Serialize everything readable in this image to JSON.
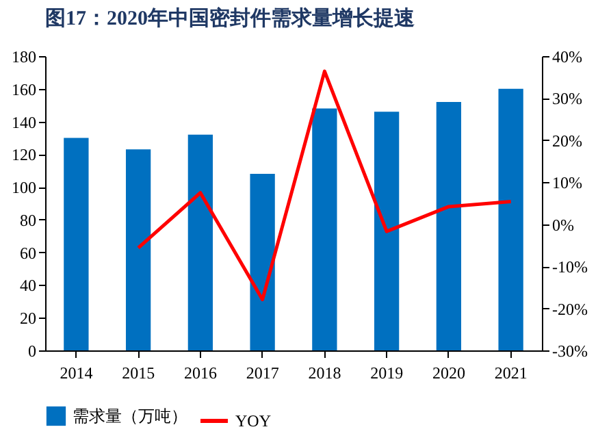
{
  "chart_data": {
    "type": "bar",
    "title": "图17：2020年中国密封件需求量增长提速",
    "categories": [
      "2014",
      "2015",
      "2016",
      "2017",
      "2018",
      "2019",
      "2020",
      "2021"
    ],
    "series": [
      {
        "name": "需求量（万吨）",
        "color": "#0070c0",
        "values": [
          130,
          123,
          132,
          108,
          148,
          146,
          152,
          160
        ]
      },
      {
        "name": "YOY",
        "type": "line",
        "color": "#ff0000",
        "axis": "y2",
        "values": [
          null,
          -5.6,
          7.5,
          -17.9,
          36.4,
          -1.7,
          4.2,
          5.4
        ]
      }
    ],
    "ylim": [
      0,
      180
    ],
    "yticks": [
      0,
      20,
      40,
      60,
      80,
      100,
      120,
      140,
      160,
      180
    ],
    "y2lim": [
      -30,
      40
    ],
    "y2ticks": [
      {
        "value": -30,
        "label": "-30%"
      },
      {
        "value": -20,
        "label": "-20%"
      },
      {
        "value": -10,
        "label": "-10%"
      },
      {
        "value": 0,
        "label": "0%"
      },
      {
        "value": 10,
        "label": "10%"
      },
      {
        "value": 20,
        "label": "20%"
      },
      {
        "value": 30,
        "label": "30%"
      },
      {
        "value": 40,
        "label": "40%"
      }
    ],
    "legend": "bottom",
    "grid": false
  }
}
